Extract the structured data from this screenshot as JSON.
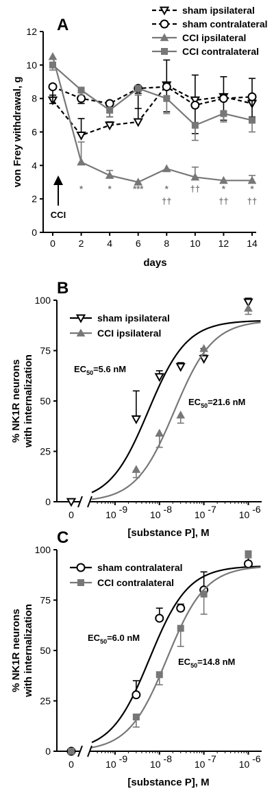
{
  "chart_data": [
    {
      "panel": "A",
      "type": "line",
      "xlabel": "days",
      "ylabel": "von Frey withdrawal, g",
      "xlim": [
        0,
        14
      ],
      "ylim": [
        0,
        12
      ],
      "xticks": [
        0,
        2,
        4,
        6,
        8,
        10,
        12,
        14
      ],
      "yticks": [
        0,
        2,
        4,
        6,
        8,
        10,
        12
      ],
      "x": [
        0,
        2,
        4,
        6,
        8,
        10,
        12,
        14
      ],
      "legend_position": "top-right",
      "series": [
        {
          "name": "sham ipsilateral",
          "color": "#000000",
          "marker": "triangle-down-open",
          "dashed": true,
          "values": [
            7.9,
            5.8,
            6.4,
            6.6,
            8.8,
            7.9,
            8.1,
            7.7
          ],
          "errors": [
            0.3,
            1.0,
            0.2,
            1.7,
            1.5,
            1.5,
            1.2,
            1.5
          ]
        },
        {
          "name": "sham contralateral",
          "color": "#000000",
          "marker": "circle-open",
          "dashed": true,
          "values": [
            8.7,
            8.0,
            7.7,
            8.6,
            8.7,
            7.6,
            8.0,
            8.1
          ],
          "errors": [
            1.0,
            0.3,
            0.8,
            1.2,
            1.5,
            1.7,
            1.3,
            1.2
          ]
        },
        {
          "name": "CCI ipsilateral",
          "color": "#777777",
          "marker": "triangle-up",
          "dashed": false,
          "values": [
            10.5,
            4.2,
            3.4,
            3.0,
            3.8,
            3.3,
            3.1,
            3.1
          ],
          "errors": [
            0,
            1.2,
            0.3,
            0,
            0,
            0.6,
            0,
            0.3
          ]
        },
        {
          "name": "CCI contralateral",
          "color": "#777777",
          "marker": "square",
          "dashed": false,
          "values": [
            10.0,
            8.5,
            7.3,
            8.6,
            8.0,
            6.4,
            7.1,
            6.7
          ],
          "errors": [
            0.3,
            0.3,
            0.4,
            0.4,
            0.9,
            0.9,
            0.5,
            0.7
          ]
        }
      ],
      "annotations": {
        "arrow_label": "CCI",
        "significance": [
          {
            "x": 2,
            "line1": "*",
            "line2": ""
          },
          {
            "x": 4,
            "line1": "*",
            "line2": ""
          },
          {
            "x": 6,
            "line1": "***",
            "line2": ""
          },
          {
            "x": 8,
            "line1": "*",
            "line2": "††"
          },
          {
            "x": 10,
            "line1": "††",
            "line2": ""
          },
          {
            "x": 12,
            "line1": "*",
            "line2": "††"
          },
          {
            "x": 14,
            "line1": "*",
            "line2": "††"
          }
        ]
      }
    },
    {
      "panel": "B",
      "type": "scatter",
      "xlabel": "[substance P], M",
      "ylabel_line1": "% NK1R neurons",
      "ylabel_line2": "with internalization",
      "xscale": "log",
      "xlim": [
        3e-10,
        2e-06
      ],
      "ylim": [
        0,
        100
      ],
      "yticks": [
        0,
        25,
        50,
        75,
        100
      ],
      "x_zero_tick": "0",
      "xtick_bases": [
        "10",
        "10",
        "10",
        "10"
      ],
      "xtick_exps": [
        "-9",
        "-8",
        "-7",
        "-6"
      ],
      "legend_position": "top-left",
      "ec50_labels": [
        {
          "prefix": "EC",
          "sub": "50",
          "value": "=5.6 nM"
        },
        {
          "prefix": "EC",
          "sub": "50",
          "value": "=21.6 nM"
        }
      ],
      "series": [
        {
          "name": "sham ipsilateral",
          "color": "#000000",
          "marker": "triangle-down-open",
          "ec50": 5.6e-09,
          "top": 90,
          "bottom": 0,
          "zero_value": 0,
          "points": [
            {
              "x": 3e-09,
              "y": 41,
              "err": 14
            },
            {
              "x": 1e-08,
              "y": 62,
              "err": 3
            },
            {
              "x": 3e-08,
              "y": 67,
              "err": 2
            },
            {
              "x": 1e-07,
              "y": 71,
              "err": 5
            },
            {
              "x": 1e-06,
              "y": 99,
              "err": 2
            }
          ]
        },
        {
          "name": "CCI ipsilateral",
          "color": "#777777",
          "marker": "triangle-up",
          "ec50": 2.16e-08,
          "top": 90,
          "bottom": 0,
          "zero_value": null,
          "points": [
            {
              "x": 3e-09,
              "y": 16,
              "err": 4
            },
            {
              "x": 1e-08,
              "y": 34,
              "err": 7
            },
            {
              "x": 3e-08,
              "y": 43,
              "err": 4
            },
            {
              "x": 1e-07,
              "y": 76,
              "err": 3
            },
            {
              "x": 1e-06,
              "y": 96,
              "err": 3
            }
          ]
        }
      ]
    },
    {
      "panel": "C",
      "type": "scatter",
      "xlabel": "[substance P], M",
      "ylabel_line1": "% NK1R neurons",
      "ylabel_line2": "with internalization",
      "xscale": "log",
      "xlim": [
        3e-10,
        2e-06
      ],
      "ylim": [
        0,
        100
      ],
      "yticks": [
        0,
        25,
        50,
        75,
        100
      ],
      "x_zero_tick": "0",
      "xtick_bases": [
        "10",
        "10",
        "10",
        "10"
      ],
      "xtick_exps": [
        "-9",
        "-8",
        "-7",
        "-6"
      ],
      "legend_position": "top-left",
      "ec50_labels": [
        {
          "prefix": "EC",
          "sub": "50",
          "value": "=6.0 nM"
        },
        {
          "prefix": "EC",
          "sub": "50",
          "value": "=14.8 nM"
        }
      ],
      "series": [
        {
          "name": "sham contralateral",
          "color": "#000000",
          "marker": "circle-open",
          "ec50": 6e-09,
          "top": 92,
          "bottom": 0,
          "zero_value": 0,
          "points": [
            {
              "x": 3e-09,
              "y": 28,
              "err": 7
            },
            {
              "x": 1e-08,
              "y": 66,
              "err": 5
            },
            {
              "x": 3e-08,
              "y": 71,
              "err": 2
            },
            {
              "x": 1e-07,
              "y": 80,
              "err": 9
            },
            {
              "x": 1e-06,
              "y": 93,
              "err": 3
            }
          ]
        },
        {
          "name": "CCI contralateral",
          "color": "#777777",
          "marker": "square",
          "ec50": 1.48e-08,
          "top": 92,
          "bottom": 0,
          "zero_value": 0,
          "points": [
            {
              "x": 3e-09,
              "y": 17,
              "err": 5
            },
            {
              "x": 1e-08,
              "y": 38,
              "err": 5
            },
            {
              "x": 3e-08,
              "y": 61,
              "err": 9
            },
            {
              "x": 1e-07,
              "y": 78,
              "err": 10
            },
            {
              "x": 1e-06,
              "y": 98,
              "err": 2
            }
          ]
        }
      ]
    }
  ]
}
